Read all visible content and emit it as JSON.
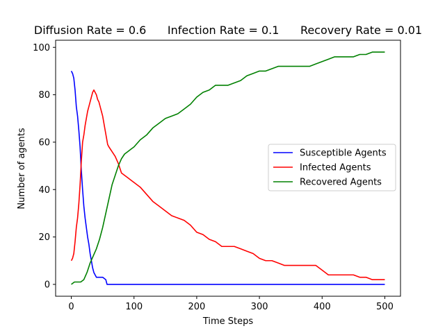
{
  "chart_data": {
    "type": "line",
    "title": "Diffusion Rate = 0.6      Infection Rate = 0.1      Recovery Rate = 0.01",
    "xlabel": "Time Steps",
    "ylabel": "Number of agents",
    "xlim": [
      -25,
      525
    ],
    "ylim": [
      -5,
      103
    ],
    "xticks": [
      0,
      100,
      200,
      300,
      400,
      500
    ],
    "yticks": [
      0,
      20,
      40,
      60,
      80,
      100
    ],
    "grid": false,
    "legend_position": "center-right",
    "series": [
      {
        "name": "Susceptible Agents",
        "color": "#0000ff",
        "x": [
          0,
          2,
          4,
          6,
          8,
          10,
          12,
          14,
          16,
          18,
          20,
          22,
          24,
          26,
          28,
          30,
          32,
          34,
          36,
          38,
          40,
          45,
          50,
          55,
          57,
          60,
          80,
          100,
          150,
          200,
          250,
          300,
          350,
          400,
          450,
          500
        ],
        "y": [
          90,
          89,
          87,
          82,
          75,
          71,
          65,
          58,
          48,
          40,
          33,
          28,
          24,
          20,
          17,
          13,
          10,
          7,
          5,
          4,
          3,
          3,
          3,
          2,
          0,
          0,
          0,
          0,
          0,
          0,
          0,
          0,
          0,
          0,
          0,
          0
        ]
      },
      {
        "name": "Infected Agents",
        "color": "#ff0000",
        "x": [
          0,
          2,
          4,
          6,
          8,
          10,
          12,
          14,
          16,
          18,
          20,
          22,
          24,
          26,
          28,
          30,
          32,
          34,
          36,
          38,
          40,
          42,
          44,
          46,
          48,
          50,
          52,
          54,
          56,
          58,
          60,
          65,
          70,
          75,
          80,
          85,
          90,
          95,
          100,
          110,
          120,
          130,
          140,
          150,
          160,
          170,
          180,
          190,
          200,
          210,
          220,
          230,
          240,
          250,
          260,
          270,
          280,
          290,
          300,
          310,
          320,
          330,
          340,
          350,
          360,
          370,
          380,
          390,
          395,
          400,
          410,
          420,
          430,
          440,
          450,
          460,
          470,
          480,
          490,
          500
        ],
        "y": [
          10,
          11,
          13,
          18,
          24,
          28,
          34,
          42,
          52,
          60,
          63,
          67,
          70,
          73,
          75,
          77,
          79,
          81,
          82,
          81,
          80,
          78,
          77,
          75,
          73,
          71,
          68,
          65,
          62,
          59,
          58,
          56,
          54,
          51,
          47,
          46,
          45,
          44,
          43,
          41,
          38,
          35,
          33,
          31,
          29,
          28,
          27,
          25,
          22,
          21,
          19,
          18,
          16,
          16,
          16,
          15,
          14,
          13,
          11,
          10,
          10,
          9,
          8,
          8,
          8,
          8,
          8,
          8,
          7,
          6,
          4,
          4,
          4,
          4,
          4,
          3,
          3,
          2,
          2,
          2
        ]
      },
      {
        "name": "Recovered Agents",
        "color": "#008000",
        "x": [
          0,
          5,
          10,
          15,
          20,
          25,
          30,
          35,
          40,
          45,
          50,
          55,
          60,
          65,
          70,
          75,
          80,
          85,
          90,
          95,
          100,
          110,
          120,
          130,
          140,
          150,
          160,
          170,
          180,
          190,
          200,
          210,
          220,
          230,
          240,
          250,
          260,
          270,
          280,
          290,
          300,
          310,
          320,
          330,
          340,
          350,
          360,
          370,
          380,
          390,
          400,
          410,
          420,
          430,
          440,
          450,
          460,
          470,
          480,
          490,
          500
        ],
        "y": [
          0,
          1,
          1,
          1,
          2,
          5,
          9,
          12,
          15,
          19,
          24,
          30,
          36,
          42,
          46,
          50,
          53,
          55,
          56,
          57,
          58,
          61,
          63,
          66,
          68,
          70,
          71,
          72,
          74,
          76,
          79,
          81,
          82,
          84,
          84,
          84,
          85,
          86,
          88,
          89,
          90,
          90,
          91,
          92,
          92,
          92,
          92,
          92,
          92,
          93,
          94,
          95,
          96,
          96,
          96,
          96,
          97,
          97,
          98,
          98,
          98
        ]
      }
    ]
  }
}
